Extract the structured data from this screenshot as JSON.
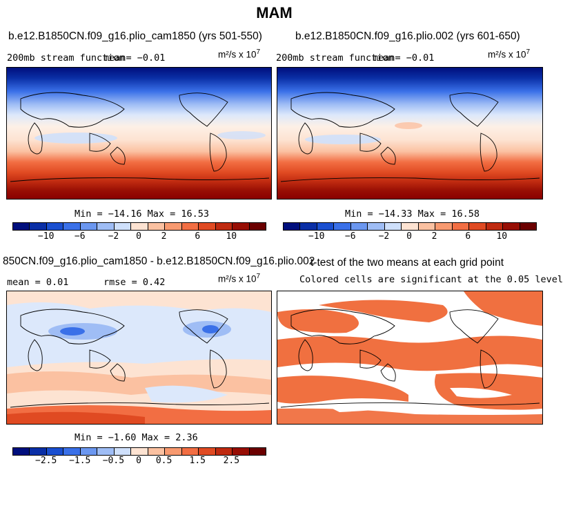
{
  "page": {
    "title": "MAM"
  },
  "panels": {
    "top_left": {
      "title": "b.e12.B1850CN.f09_g16.plio_cam1850 (yrs 501-550)",
      "variable": "200mb stream function",
      "mean_text": "mean=  −0.01",
      "units_text": "m²/s x 10",
      "units_exp": "7",
      "minmax_text": "Min = −14.16 Max =  16.53"
    },
    "top_right": {
      "title": "b.e12.B1850CN.f09_g16.plio.002 (yrs 601-650)",
      "variable": "200mb stream function",
      "mean_text": "mean=  −0.01",
      "units_text": "m²/s x 10",
      "units_exp": "7",
      "minmax_text": "Min = −14.33 Max =  16.58"
    },
    "bottom_left": {
      "title": "850CN.f09_g16.plio_cam1850 - b.e12.B1850CN.f09_g16.plio.002",
      "mean_text": "mean =   0.01",
      "rmse_text": "rmse =   0.42",
      "units_text": "m²/s x 10",
      "units_exp": "7",
      "minmax_text": "Min = −1.60 Max =   2.36"
    },
    "bottom_right": {
      "title": "t-test of the two means at each grid point",
      "subtitle": "Colored cells are significant at the 0.05 level"
    }
  },
  "colorbars": {
    "top": {
      "ticks": [
        "−10",
        "−6",
        "−2",
        "0",
        "2",
        "6",
        "10"
      ],
      "colors": [
        "#000f7d",
        "#0a2fa6",
        "#1a4fd0",
        "#3a70e8",
        "#6b97f0",
        "#9fbdf5",
        "#cfe0fb",
        "#fde3d2",
        "#fbc1a1",
        "#f89a70",
        "#f26e43",
        "#e04a22",
        "#bf2a10",
        "#970e04",
        "#6b0000"
      ]
    },
    "bottom": {
      "ticks": [
        "−2.5",
        "−1.5",
        "−0.5",
        "0",
        "0.5",
        "1.5",
        "2.5"
      ],
      "colors": [
        "#000f7d",
        "#0a2fa6",
        "#1a4fd0",
        "#3a70e8",
        "#6b97f0",
        "#9fbdf5",
        "#cfe0fb",
        "#fde3d2",
        "#fbc1a1",
        "#f89a70",
        "#f26e43",
        "#e04a22",
        "#bf2a10",
        "#970e04",
        "#6b0000"
      ]
    }
  },
  "ttest_color": "#f07040"
}
